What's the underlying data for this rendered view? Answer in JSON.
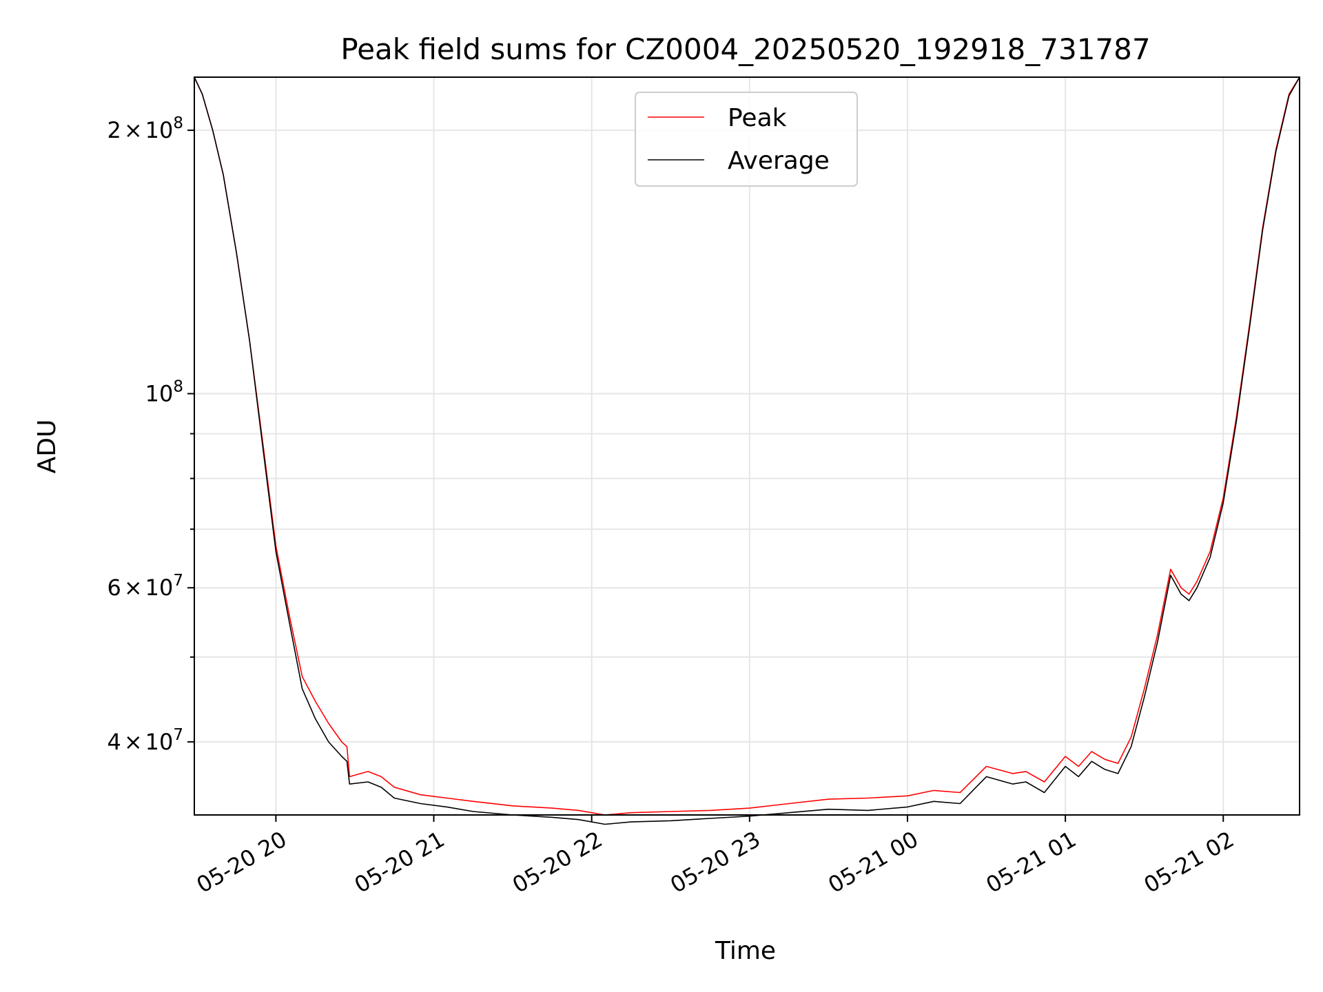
{
  "chart_data": {
    "type": "line",
    "title": "Peak field sums for CZ0004_20250520_192918_731787",
    "xlabel": "Time",
    "ylabel": "ADU",
    "yscale": "log",
    "xlim": [
      "2025-05-20 19:29",
      "2025-05-21 02:29"
    ],
    "ylim": [
      33000000.0,
      230000000.0
    ],
    "grid": true,
    "legend_position": "top-center",
    "x_ticks": [
      {
        "value": "2025-05-20 20:00",
        "label": "05-20 20"
      },
      {
        "value": "2025-05-20 21:00",
        "label": "05-20 21"
      },
      {
        "value": "2025-05-20 22:00",
        "label": "05-20 22"
      },
      {
        "value": "2025-05-20 23:00",
        "label": "05-20 23"
      },
      {
        "value": "2025-05-21 00:00",
        "label": "05-21 00"
      },
      {
        "value": "2025-05-21 01:00",
        "label": "05-21 01"
      },
      {
        "value": "2025-05-21 02:00",
        "label": "05-21 02"
      }
    ],
    "y_ticks": [
      {
        "value": 40000000,
        "mantissa": "4",
        "exponent": "7"
      },
      {
        "value": 60000000,
        "mantissa": "6",
        "exponent": "7"
      },
      {
        "value": 100000000,
        "mantissa": "",
        "exponent": "8"
      },
      {
        "value": 200000000,
        "mantissa": "2",
        "exponent": "8"
      }
    ],
    "y_minor_ticks": [
      50000000,
      70000000,
      80000000,
      90000000,
      300000000
    ],
    "series": [
      {
        "name": "Peak",
        "color": "#ff0000",
        "points": [
          [
            "2025-05-20 19:29",
            230000000.0
          ],
          [
            "2025-05-20 19:32",
            220000000.0
          ],
          [
            "2025-05-20 19:36",
            200000000.0
          ],
          [
            "2025-05-20 19:40",
            178000000.0
          ],
          [
            "2025-05-20 19:45",
            145000000.0
          ],
          [
            "2025-05-20 19:50",
            115000000.0
          ],
          [
            "2025-05-20 19:55",
            88000000.0
          ],
          [
            "2025-05-20 20:00",
            67000000.0
          ],
          [
            "2025-05-20 20:05",
            56000000.0
          ],
          [
            "2025-05-20 20:10",
            47500000.0
          ],
          [
            "2025-05-20 20:15",
            44500000.0
          ],
          [
            "2025-05-20 20:20",
            42000000.0
          ],
          [
            "2025-05-20 20:25",
            40000000.0
          ],
          [
            "2025-05-20 20:27",
            39500000.0
          ],
          [
            "2025-05-20 20:28",
            36500000.0
          ],
          [
            "2025-05-20 20:35",
            37000000.0
          ],
          [
            "2025-05-20 20:40",
            36500000.0
          ],
          [
            "2025-05-20 20:45",
            35500000.0
          ],
          [
            "2025-05-20 20:55",
            34800000.0
          ],
          [
            "2025-05-20 21:05",
            34500000.0
          ],
          [
            "2025-05-20 21:15",
            34200000.0
          ],
          [
            "2025-05-20 21:30",
            33800000.0
          ],
          [
            "2025-05-20 21:45",
            33600000.0
          ],
          [
            "2025-05-20 21:55",
            33400000.0
          ],
          [
            "2025-05-20 22:05",
            33000000.0
          ],
          [
            "2025-05-20 22:15",
            33200000.0
          ],
          [
            "2025-05-20 22:30",
            33300000.0
          ],
          [
            "2025-05-20 22:45",
            33400000.0
          ],
          [
            "2025-05-20 23:00",
            33600000.0
          ],
          [
            "2025-05-20 23:15",
            34000000.0
          ],
          [
            "2025-05-20 23:30",
            34400000.0
          ],
          [
            "2025-05-20 23:45",
            34500000.0
          ],
          [
            "2025-05-21 00:00",
            34700000.0
          ],
          [
            "2025-05-21 00:10",
            35200000.0
          ],
          [
            "2025-05-21 00:20",
            35000000.0
          ],
          [
            "2025-05-21 00:30",
            37500000.0
          ],
          [
            "2025-05-21 00:40",
            36800000.0
          ],
          [
            "2025-05-21 00:45",
            37000000.0
          ],
          [
            "2025-05-21 00:52",
            36000000.0
          ],
          [
            "2025-05-21 01:00",
            38500000.0
          ],
          [
            "2025-05-21 01:05",
            37500000.0
          ],
          [
            "2025-05-21 01:10",
            39000000.0
          ],
          [
            "2025-05-21 01:15",
            38200000.0
          ],
          [
            "2025-05-21 01:20",
            37800000.0
          ],
          [
            "2025-05-21 01:25",
            40500000.0
          ],
          [
            "2025-05-21 01:30",
            46000000.0
          ],
          [
            "2025-05-21 01:35",
            53000000.0
          ],
          [
            "2025-05-21 01:40",
            63000000.0
          ],
          [
            "2025-05-21 01:44",
            60000000.0
          ],
          [
            "2025-05-21 01:47",
            59000000.0
          ],
          [
            "2025-05-21 01:50",
            61000000.0
          ],
          [
            "2025-05-21 01:55",
            66000000.0
          ],
          [
            "2025-05-21 02:00",
            76000000.0
          ],
          [
            "2025-05-21 02:05",
            94000000.0
          ],
          [
            "2025-05-21 02:10",
            120000000.0
          ],
          [
            "2025-05-21 02:15",
            155000000.0
          ],
          [
            "2025-05-21 02:20",
            190000000.0
          ],
          [
            "2025-05-21 02:25",
            220000000.0
          ],
          [
            "2025-05-21 02:29",
            230000000.0
          ]
        ]
      },
      {
        "name": "Average",
        "color": "#000000",
        "points": [
          [
            "2025-05-20 19:29",
            230000000.0
          ],
          [
            "2025-05-20 19:32",
            220000000.0
          ],
          [
            "2025-05-20 19:36",
            200000000.0
          ],
          [
            "2025-05-20 19:40",
            178000000.0
          ],
          [
            "2025-05-20 19:45",
            145000000.0
          ],
          [
            "2025-05-20 19:50",
            115000000.0
          ],
          [
            "2025-05-20 19:55",
            87000000.0
          ],
          [
            "2025-05-20 20:00",
            66000000.0
          ],
          [
            "2025-05-20 20:05",
            55000000.0
          ],
          [
            "2025-05-20 20:10",
            46000000.0
          ],
          [
            "2025-05-20 20:15",
            42500000.0
          ],
          [
            "2025-05-20 20:20",
            40000000.0
          ],
          [
            "2025-05-20 20:25",
            38500000.0
          ],
          [
            "2025-05-20 20:27",
            38000000.0
          ],
          [
            "2025-05-20 20:28",
            35800000.0
          ],
          [
            "2025-05-20 20:35",
            36000000.0
          ],
          [
            "2025-05-20 20:40",
            35500000.0
          ],
          [
            "2025-05-20 20:45",
            34500000.0
          ],
          [
            "2025-05-20 20:55",
            34000000.0
          ],
          [
            "2025-05-20 21:05",
            33700000.0
          ],
          [
            "2025-05-20 21:15",
            33300000.0
          ],
          [
            "2025-05-20 21:30",
            33000000.0
          ],
          [
            "2025-05-20 21:45",
            32800000.0
          ],
          [
            "2025-05-20 21:55",
            32600000.0
          ],
          [
            "2025-05-20 22:05",
            32200000.0
          ],
          [
            "2025-05-20 22:15",
            32400000.0
          ],
          [
            "2025-05-20 22:30",
            32500000.0
          ],
          [
            "2025-05-20 22:45",
            32700000.0
          ],
          [
            "2025-05-20 23:00",
            32900000.0
          ],
          [
            "2025-05-20 23:15",
            33200000.0
          ],
          [
            "2025-05-20 23:30",
            33500000.0
          ],
          [
            "2025-05-20 23:45",
            33400000.0
          ],
          [
            "2025-05-21 00:00",
            33700000.0
          ],
          [
            "2025-05-21 00:10",
            34200000.0
          ],
          [
            "2025-05-21 00:20",
            34000000.0
          ],
          [
            "2025-05-21 00:30",
            36500000.0
          ],
          [
            "2025-05-21 00:40",
            35800000.0
          ],
          [
            "2025-05-21 00:45",
            36000000.0
          ],
          [
            "2025-05-21 00:52",
            35000000.0
          ],
          [
            "2025-05-21 01:00",
            37500000.0
          ],
          [
            "2025-05-21 01:05",
            36500000.0
          ],
          [
            "2025-05-21 01:10",
            38000000.0
          ],
          [
            "2025-05-21 01:15",
            37200000.0
          ],
          [
            "2025-05-21 01:20",
            36800000.0
          ],
          [
            "2025-05-21 01:25",
            39500000.0
          ],
          [
            "2025-05-21 01:30",
            45000000.0
          ],
          [
            "2025-05-21 01:35",
            52000000.0
          ],
          [
            "2025-05-21 01:40",
            62000000.0
          ],
          [
            "2025-05-21 01:44",
            59000000.0
          ],
          [
            "2025-05-21 01:47",
            58000000.0
          ],
          [
            "2025-05-21 01:50",
            60000000.0
          ],
          [
            "2025-05-21 01:55",
            65000000.0
          ],
          [
            "2025-05-21 02:00",
            75000000.0
          ],
          [
            "2025-05-21 02:05",
            93000000.0
          ],
          [
            "2025-05-21 02:10",
            119000000.0
          ],
          [
            "2025-05-21 02:15",
            154000000.0
          ],
          [
            "2025-05-21 02:20",
            189000000.0
          ],
          [
            "2025-05-21 02:25",
            219000000.0
          ],
          [
            "2025-05-21 02:29",
            230000000.0
          ]
        ]
      }
    ]
  }
}
